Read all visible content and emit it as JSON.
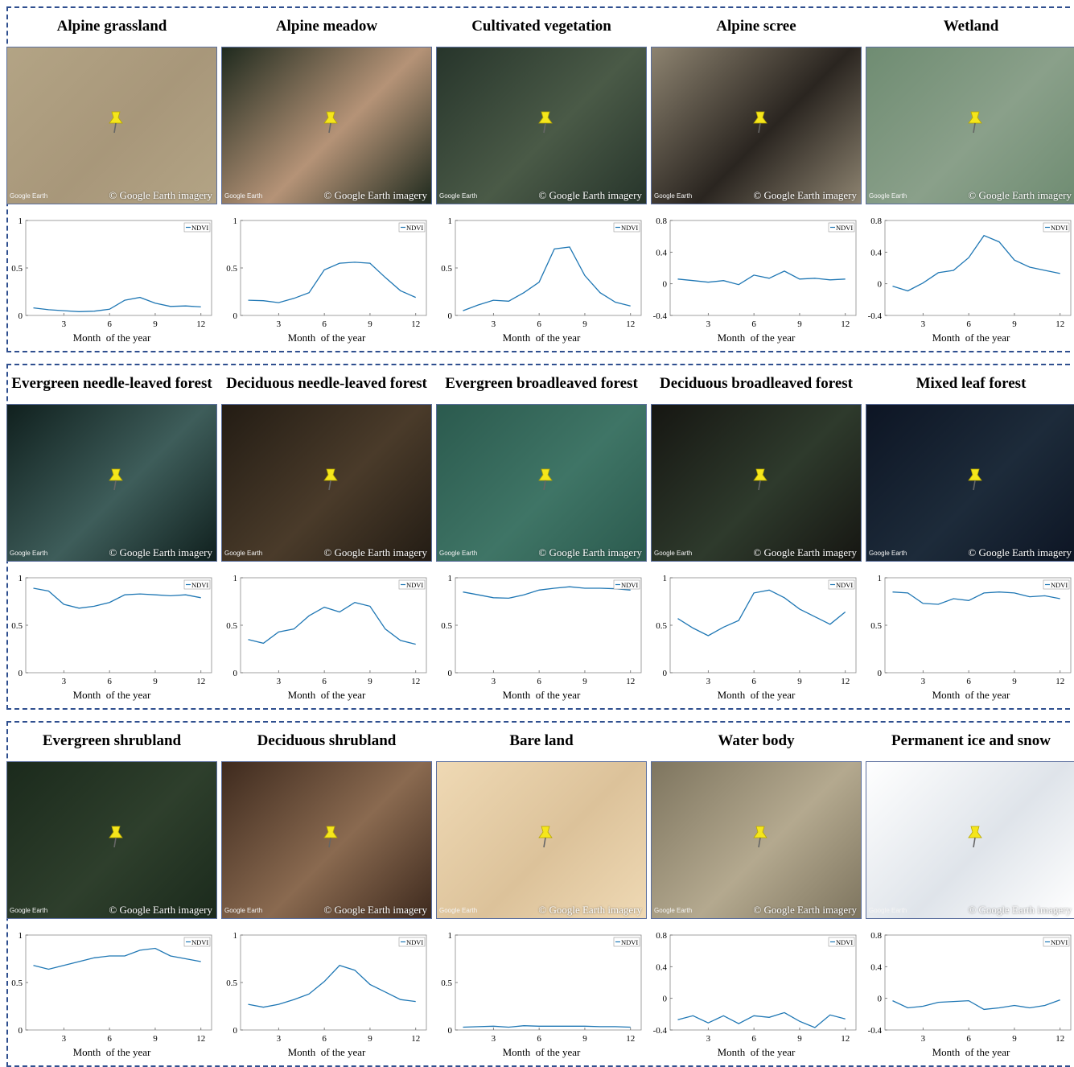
{
  "pin_color": "#f5e61b",
  "line_color": "#1f77b4",
  "border_color": "#2f4f8f",
  "credit": "© Google Earth imagery",
  "watermark": "Google Earth",
  "chart_data": [
    {
      "type": "line",
      "title": "Alpine grassland",
      "xlabel": "Month  of the year",
      "xticks": [
        3,
        6,
        9,
        12
      ],
      "ylim": [
        0,
        1
      ],
      "yticks": [
        "0",
        "0.5",
        "1"
      ],
      "legend": "top-right",
      "series": [
        {
          "name": "NDVI",
          "x": [
            1,
            2,
            3,
            4,
            5,
            6,
            7,
            8,
            9,
            10,
            11,
            12
          ],
          "y": [
            0.08,
            0.06,
            0.05,
            0.04,
            0.045,
            0.065,
            0.16,
            0.19,
            0.13,
            0.095,
            0.1,
            0.09
          ]
        }
      ],
      "image": {
        "bg": "#b3a485",
        "bg2": "#a8977a"
      }
    },
    {
      "type": "line",
      "title": "Alpine meadow",
      "xlabel": "Month  of the year",
      "xticks": [
        3,
        6,
        9,
        12
      ],
      "ylim": [
        0,
        1
      ],
      "yticks": [
        "0",
        "0.5",
        "1"
      ],
      "legend": "top-right",
      "series": [
        {
          "name": "NDVI",
          "x": [
            1,
            2,
            3,
            4,
            5,
            6,
            7,
            8,
            9,
            10,
            11,
            12
          ],
          "y": [
            0.16,
            0.155,
            0.135,
            0.18,
            0.24,
            0.48,
            0.55,
            0.56,
            0.55,
            0.4,
            0.26,
            0.19
          ]
        }
      ],
      "image": {
        "bg": "#1f2a1e",
        "bg2": "#b59377"
      }
    },
    {
      "type": "line",
      "title": "Cultivated vegetation",
      "xlabel": "Month  of the year",
      "xticks": [
        3,
        6,
        9,
        12
      ],
      "ylim": [
        0,
        1
      ],
      "yticks": [
        "0",
        "0.5",
        "1"
      ],
      "legend": "top-right",
      "series": [
        {
          "name": "NDVI",
          "x": [
            1,
            2,
            3,
            4,
            5,
            6,
            7,
            8,
            9,
            10,
            11,
            12
          ],
          "y": [
            0.05,
            0.11,
            0.16,
            0.15,
            0.24,
            0.35,
            0.7,
            0.72,
            0.42,
            0.24,
            0.14,
            0.1
          ]
        }
      ],
      "image": {
        "bg": "#27352b",
        "bg2": "#4a5a47"
      }
    },
    {
      "type": "line",
      "title": "Alpine scree",
      "xlabel": "Month  of the year",
      "xticks": [
        3,
        6,
        9,
        12
      ],
      "ylim": [
        -0.4,
        0.8
      ],
      "yticks": [
        "-0.4",
        "0",
        "0.4",
        "0.8"
      ],
      "legend": "top-right",
      "series": [
        {
          "name": "NDVI",
          "x": [
            1,
            2,
            3,
            4,
            5,
            6,
            7,
            8,
            9,
            10,
            11,
            12
          ],
          "y": [
            0.06,
            0.04,
            0.02,
            0.04,
            -0.01,
            0.11,
            0.07,
            0.16,
            0.06,
            0.07,
            0.05,
            0.06
          ]
        }
      ],
      "image": {
        "bg": "#8d8370",
        "bg2": "#2a2520"
      }
    },
    {
      "type": "line",
      "title": "Wetland",
      "xlabel": "Month  of the year",
      "xticks": [
        3,
        6,
        9,
        12
      ],
      "ylim": [
        -0.4,
        0.8
      ],
      "yticks": [
        "-0.4",
        "0",
        "0.4",
        "0.8"
      ],
      "legend": "top-right",
      "series": [
        {
          "name": "NDVI",
          "x": [
            1,
            2,
            3,
            4,
            5,
            6,
            7,
            8,
            9,
            10,
            11,
            12
          ],
          "y": [
            -0.03,
            -0.09,
            0.01,
            0.14,
            0.17,
            0.33,
            0.61,
            0.53,
            0.3,
            0.21,
            0.17,
            0.13
          ]
        }
      ],
      "image": {
        "bg": "#6f8c72",
        "bg2": "#8aa08a"
      }
    },
    {
      "type": "line",
      "title": "Evergreen needle-leaved forest",
      "xlabel": "Month  of the year",
      "xticks": [
        3,
        6,
        9,
        12
      ],
      "ylim": [
        0,
        1
      ],
      "yticks": [
        "0",
        "0.5",
        "1"
      ],
      "legend": "top-right",
      "series": [
        {
          "name": "NDVI",
          "x": [
            1,
            2,
            3,
            4,
            5,
            6,
            7,
            8,
            9,
            10,
            11,
            12
          ],
          "y": [
            0.89,
            0.86,
            0.72,
            0.68,
            0.7,
            0.74,
            0.82,
            0.83,
            0.82,
            0.81,
            0.82,
            0.79
          ]
        }
      ],
      "image": {
        "bg": "#10201e",
        "bg2": "#3e5d5a"
      }
    },
    {
      "type": "line",
      "title": "Deciduous needle-leaved forest",
      "xlabel": "Month  of the year",
      "xticks": [
        3,
        6,
        9,
        12
      ],
      "ylim": [
        0,
        1
      ],
      "yticks": [
        "0",
        "0.5",
        "1"
      ],
      "legend": "top-right",
      "series": [
        {
          "name": "NDVI",
          "x": [
            1,
            2,
            3,
            4,
            5,
            6,
            7,
            8,
            9,
            10,
            11,
            12
          ],
          "y": [
            0.35,
            0.31,
            0.43,
            0.46,
            0.6,
            0.69,
            0.64,
            0.74,
            0.7,
            0.46,
            0.34,
            0.3
          ]
        }
      ],
      "image": {
        "bg": "#231c14",
        "bg2": "#4a3b2a"
      }
    },
    {
      "type": "line",
      "title": "Evergreen broadleaved forest",
      "xlabel": "Month  of the year",
      "xticks": [
        3,
        6,
        9,
        12
      ],
      "ylim": [
        0,
        1
      ],
      "yticks": [
        "0",
        "0.5",
        "1"
      ],
      "legend": "top-right",
      "series": [
        {
          "name": "NDVI",
          "x": [
            1,
            2,
            3,
            4,
            5,
            6,
            7,
            8,
            9,
            10,
            11,
            12
          ],
          "y": [
            0.85,
            0.82,
            0.79,
            0.785,
            0.82,
            0.87,
            0.89,
            0.905,
            0.89,
            0.89,
            0.885,
            0.87
          ]
        }
      ],
      "image": {
        "bg": "#2b5a4e",
        "bg2": "#3f7566"
      }
    },
    {
      "type": "line",
      "title": "Deciduous broadleaved forest",
      "xlabel": "Month  of the year",
      "xticks": [
        3,
        6,
        9,
        12
      ],
      "ylim": [
        0,
        1
      ],
      "yticks": [
        "0",
        "0.5",
        "1"
      ],
      "legend": "top-right",
      "series": [
        {
          "name": "NDVI",
          "x": [
            1,
            2,
            3,
            4,
            5,
            6,
            7,
            8,
            9,
            10,
            11,
            12
          ],
          "y": [
            0.57,
            0.47,
            0.39,
            0.48,
            0.55,
            0.84,
            0.87,
            0.79,
            0.67,
            0.59,
            0.51,
            0.64
          ]
        }
      ],
      "image": {
        "bg": "#161612",
        "bg2": "#2e3a2c"
      }
    },
    {
      "type": "line",
      "title": "Mixed leaf forest",
      "xlabel": "Month  of the year",
      "xticks": [
        3,
        6,
        9,
        12
      ],
      "ylim": [
        0,
        1
      ],
      "yticks": [
        "0",
        "0.5",
        "1"
      ],
      "legend": "top-right",
      "series": [
        {
          "name": "NDVI",
          "x": [
            1,
            2,
            3,
            4,
            5,
            6,
            7,
            8,
            9,
            10,
            11,
            12
          ],
          "y": [
            0.85,
            0.84,
            0.73,
            0.72,
            0.78,
            0.76,
            0.84,
            0.85,
            0.84,
            0.8,
            0.81,
            0.78
          ]
        }
      ],
      "image": {
        "bg": "#0d1524",
        "bg2": "#1d2b3a"
      }
    },
    {
      "type": "line",
      "title": "Evergreen shrubland",
      "xlabel": "Month  of the year",
      "xticks": [
        3,
        6,
        9,
        12
      ],
      "ylim": [
        0,
        1
      ],
      "yticks": [
        "0",
        "0.5",
        "1"
      ],
      "legend": "top-right",
      "series": [
        {
          "name": "NDVI",
          "x": [
            1,
            2,
            3,
            4,
            5,
            6,
            7,
            8,
            9,
            10,
            11,
            12
          ],
          "y": [
            0.68,
            0.64,
            0.68,
            0.72,
            0.76,
            0.78,
            0.78,
            0.84,
            0.86,
            0.78,
            0.75,
            0.72
          ]
        }
      ],
      "image": {
        "bg": "#1b2a1c",
        "bg2": "#2e3f2c"
      }
    },
    {
      "type": "line",
      "title": "Deciduous shrubland",
      "xlabel": "Month  of the year",
      "xticks": [
        3,
        6,
        9,
        12
      ],
      "ylim": [
        0,
        1
      ],
      "yticks": [
        "0",
        "0.5",
        "1"
      ],
      "legend": "top-right",
      "series": [
        {
          "name": "NDVI",
          "x": [
            1,
            2,
            3,
            4,
            5,
            6,
            7,
            8,
            9,
            10,
            11,
            12
          ],
          "y": [
            0.27,
            0.24,
            0.27,
            0.32,
            0.38,
            0.51,
            0.68,
            0.63,
            0.48,
            0.4,
            0.32,
            0.3
          ]
        }
      ],
      "image": {
        "bg": "#3e2a1e",
        "bg2": "#8a6a50"
      }
    },
    {
      "type": "line",
      "title": "Bare land",
      "xlabel": "Month  of the year",
      "xticks": [
        3,
        6,
        9,
        12
      ],
      "ylim": [
        0,
        1
      ],
      "yticks": [
        "0",
        "0.5",
        "1"
      ],
      "legend": "top-right",
      "series": [
        {
          "name": "NDVI",
          "x": [
            1,
            2,
            3,
            4,
            5,
            6,
            7,
            8,
            9,
            10,
            11,
            12
          ],
          "y": [
            0.03,
            0.035,
            0.04,
            0.03,
            0.045,
            0.04,
            0.04,
            0.04,
            0.04,
            0.035,
            0.035,
            0.03
          ]
        }
      ],
      "image": {
        "bg": "#efd9b4",
        "bg2": "#dcc29a"
      }
    },
    {
      "type": "line",
      "title": "Water body",
      "xlabel": "Month  of the year",
      "xticks": [
        3,
        6,
        9,
        12
      ],
      "ylim": [
        -0.4,
        0.8
      ],
      "yticks": [
        "-0.4",
        "0",
        "0.4",
        "0.8"
      ],
      "legend": "top-right",
      "series": [
        {
          "name": "NDVI",
          "x": [
            1,
            2,
            3,
            4,
            5,
            6,
            7,
            8,
            9,
            10,
            11,
            12
          ],
          "y": [
            -0.27,
            -0.22,
            -0.31,
            -0.22,
            -0.32,
            -0.22,
            -0.24,
            -0.18,
            -0.29,
            -0.37,
            -0.21,
            -0.26
          ]
        }
      ],
      "image": {
        "bg": "#7e755f",
        "bg2": "#b4a98f"
      }
    },
    {
      "type": "line",
      "title": "Permanent ice and snow",
      "xlabel": "Month  of the year",
      "xticks": [
        3,
        6,
        9,
        12
      ],
      "ylim": [
        -0.4,
        0.8
      ],
      "yticks": [
        "-0.4",
        "0",
        "0.4",
        "0.8"
      ],
      "legend": "top-right",
      "series": [
        {
          "name": "NDVI",
          "x": [
            1,
            2,
            3,
            4,
            5,
            6,
            7,
            8,
            9,
            10,
            11,
            12
          ],
          "y": [
            -0.03,
            -0.12,
            -0.1,
            -0.05,
            -0.04,
            -0.03,
            -0.14,
            -0.12,
            -0.09,
            -0.12,
            -0.09,
            -0.02
          ]
        }
      ],
      "image": {
        "bg": "#ffffff",
        "bg2": "#dfe4ea"
      }
    }
  ]
}
